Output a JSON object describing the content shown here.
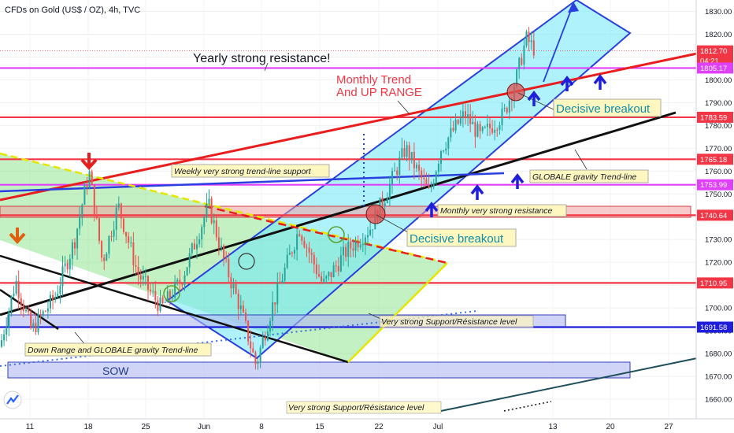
{
  "header": {
    "symbol_title": "CFDs on Gold (US$ / OZ), 4h, TVC"
  },
  "logo_text": "TV",
  "chart_data": {
    "type": "candlestick",
    "title": "CFDs on Gold (US$ / OZ), 4h, TVC",
    "ylim": [
      1655,
      1838
    ],
    "y_ticks": [
      1660,
      1670,
      1680,
      1690,
      1700,
      1710,
      1720,
      1730,
      1740,
      1750,
      1760,
      1770,
      1780,
      1790,
      1800,
      1810,
      1820,
      1830
    ],
    "x_ticks": [
      "11",
      "18",
      "25",
      "Jun",
      "8",
      "15",
      "22",
      "Jul",
      "13",
      "20",
      "27"
    ],
    "price_tags": [
      {
        "label": "1812.70",
        "value": 1812.7,
        "color": "#f23645"
      },
      {
        "label": "04:21",
        "value": 1808.5,
        "color": "#f23645"
      },
      {
        "label": "1805.17",
        "value": 1805.17,
        "color": "#e040fb"
      },
      {
        "label": "1783.59",
        "value": 1783.59,
        "color": "#f23645"
      },
      {
        "label": "1765.18",
        "value": 1765.18,
        "color": "#f23645"
      },
      {
        "label": "1753.99",
        "value": 1753.99,
        "color": "#e040fb"
      },
      {
        "label": "1740.64",
        "value": 1740.64,
        "color": "#f23645"
      },
      {
        "label": "1710.95",
        "value": 1710.95,
        "color": "#f23645"
      },
      {
        "label": "1691.58",
        "value": 1691.58,
        "color": "#1e1edc"
      }
    ],
    "horizontal_levels": [
      {
        "value": 1805.17,
        "color": "#e040fb"
      },
      {
        "value": 1783.59,
        "color": "#f23645"
      },
      {
        "value": 1765.18,
        "color": "#f23645"
      },
      {
        "value": 1753.99,
        "color": "#e040fb"
      },
      {
        "value": 1740.64,
        "color": "#f23645"
      },
      {
        "value": 1710.95,
        "color": "#f23645"
      },
      {
        "value": 1691.58,
        "color": "#1e1edc"
      }
    ],
    "annotations": {
      "yearly_resistance": "Yearly strong resistance!",
      "monthly_trend_1": "Monthly Trend",
      "monthly_trend_2": "And UP RANGE",
      "decisive_breakout_1": "Decisive breakout",
      "decisive_breakout_2": "Decisive breakout",
      "weekly_support": "Weekly very strong trend-line support",
      "globale_gravity": "GLOBALE gravity Trend-line",
      "monthly_resistance": "Monthly very strong resistance",
      "very_strong_sr_1": "Very strong Support/Résistance level",
      "very_strong_sr_2": "Very strong Support/Résistance level",
      "down_range": "Down Range and GLOBALE gravity Trend-line",
      "sow": "SOW"
    }
  }
}
